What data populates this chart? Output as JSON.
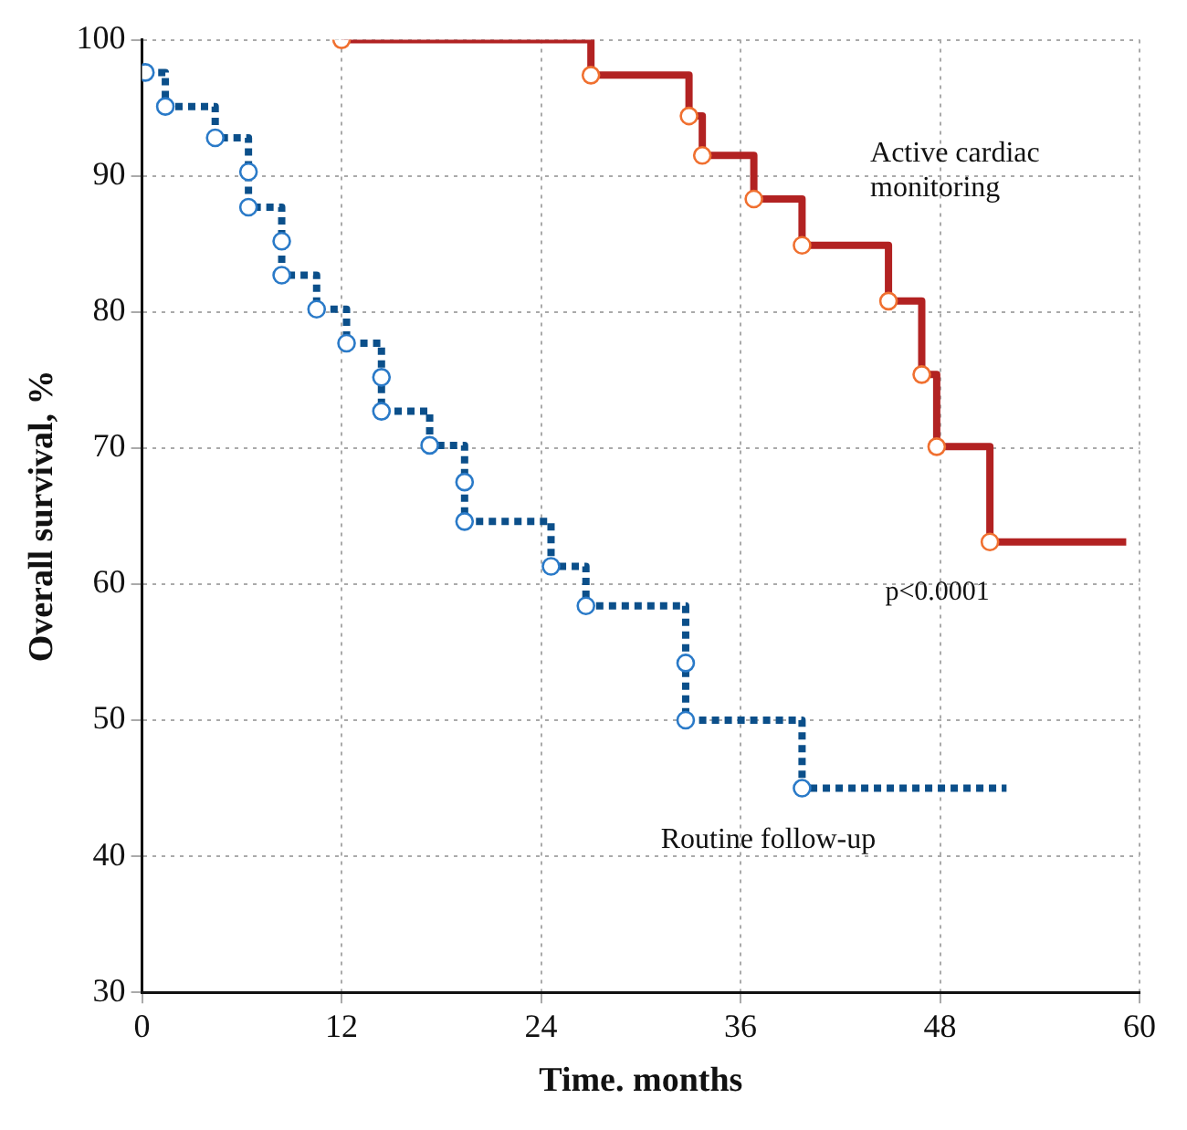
{
  "chart_data": {
    "type": "step",
    "xlabel": "Time. months",
    "ylabel": "Overall survival, %",
    "xlim": [
      0,
      60
    ],
    "xticks": [
      0,
      12,
      24,
      36,
      48,
      60
    ],
    "ylim": [
      30,
      100
    ],
    "yticks": [
      30,
      40,
      50,
      60,
      70,
      80,
      90,
      100
    ],
    "grid": true,
    "legend": false,
    "marker": "circle",
    "annotations": [
      "p<0.0001"
    ],
    "series": [
      {
        "name": "Active cardiac monitoring",
        "color": "#b22222",
        "line_style": "solid",
        "x": [
          12,
          27,
          32.9,
          33.7,
          36.8,
          39.7,
          44.9,
          46.9,
          47.8,
          51.0,
          59.2
        ],
        "values": [
          100,
          97.4,
          94.4,
          91.5,
          88.3,
          84.9,
          80.8,
          75.4,
          70.1,
          63.1,
          63.1
        ]
      },
      {
        "name": "Routine follow-up",
        "color": "#0b4f8a",
        "line_style": "dotted",
        "x": [
          0.2,
          1.4,
          4.4,
          6.4,
          6.4,
          8.4,
          8.4,
          10.5,
          12.3,
          14.4,
          14.4,
          17.3,
          19.4,
          19.4,
          24.6,
          26.7,
          32.7,
          32.7,
          39.7,
          52.0
        ],
        "values": [
          97.6,
          95.1,
          92.8,
          90.3,
          87.7,
          85.2,
          82.7,
          80.2,
          77.7,
          75.2,
          72.7,
          70.2,
          67.5,
          64.6,
          61.3,
          58.4,
          54.2,
          50,
          45,
          45
        ]
      }
    ]
  }
}
